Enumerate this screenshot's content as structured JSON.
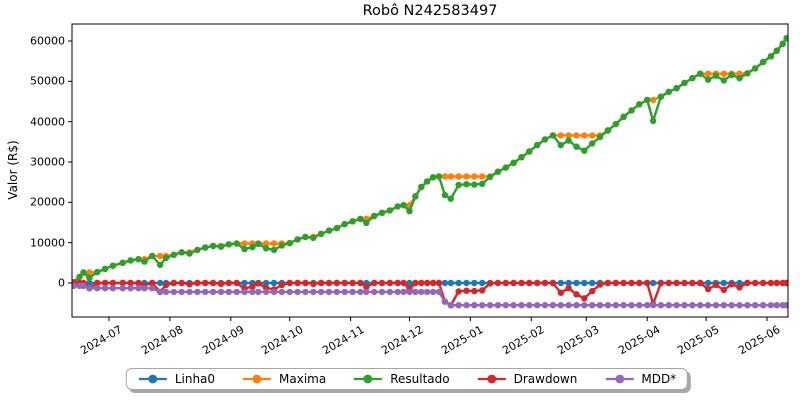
{
  "title": "Robô N242583497",
  "chart_data": {
    "type": "line",
    "title": "Robô N242583497",
    "xlabel": "",
    "ylabel": "Valor (R$)",
    "grid": false,
    "legend_position": "lower center outside",
    "ylim": [
      -8430,
      64200
    ],
    "xlim": [
      "2024-06-12",
      "2025-06-11"
    ],
    "ytick_values": [
      0,
      10000,
      20000,
      30000,
      40000,
      50000,
      60000
    ],
    "ytick_labels": [
      "0",
      "10000",
      "20000",
      "30000",
      "40000",
      "50000",
      "60000"
    ],
    "xtick_dates": [
      "2024-07-01",
      "2024-08-01",
      "2024-09-01",
      "2024-10-01",
      "2024-11-01",
      "2024-12-01",
      "2025-01-01",
      "2025-02-01",
      "2025-03-01",
      "2025-04-01",
      "2025-05-01",
      "2025-06-01"
    ],
    "xtick_labels": [
      "2024-07",
      "2024-08",
      "2024-09",
      "2024-10",
      "2024-11",
      "2024-12",
      "2025-01",
      "2025-02",
      "2025-03",
      "2025-04",
      "2025-05",
      "2025-06"
    ],
    "x_dates": [
      "2024-06-13",
      "2024-06-16",
      "2024-06-18",
      "2024-06-21",
      "2024-06-25",
      "2024-06-29",
      "2024-07-03",
      "2024-07-08",
      "2024-07-12",
      "2024-07-16",
      "2024-07-19",
      "2024-07-23",
      "2024-07-27",
      "2024-07-30",
      "2024-08-03",
      "2024-08-07",
      "2024-08-11",
      "2024-08-15",
      "2024-08-19",
      "2024-08-23",
      "2024-08-27",
      "2024-08-31",
      "2024-09-04",
      "2024-09-08",
      "2024-09-12",
      "2024-09-15",
      "2024-09-19",
      "2024-09-23",
      "2024-09-27",
      "2024-10-01",
      "2024-10-05",
      "2024-10-09",
      "2024-10-13",
      "2024-10-17",
      "2024-10-21",
      "2024-10-25",
      "2024-10-29",
      "2024-11-02",
      "2024-11-06",
      "2024-11-09",
      "2024-11-13",
      "2024-11-17",
      "2024-11-21",
      "2024-11-25",
      "2024-11-28",
      "2024-12-01",
      "2024-12-04",
      "2024-12-07",
      "2024-12-10",
      "2024-12-13",
      "2024-12-16",
      "2024-12-19",
      "2024-12-22",
      "2024-12-26",
      "2024-12-30",
      "2025-01-03",
      "2025-01-07",
      "2025-01-11",
      "2025-01-15",
      "2025-01-19",
      "2025-01-23",
      "2025-01-27",
      "2025-01-31",
      "2025-02-04",
      "2025-02-08",
      "2025-02-12",
      "2025-02-16",
      "2025-02-20",
      "2025-02-24",
      "2025-02-28",
      "2025-03-04",
      "2025-03-08",
      "2025-03-12",
      "2025-03-16",
      "2025-03-20",
      "2025-03-24",
      "2025-03-28",
      "2025-04-01",
      "2025-04-04",
      "2025-04-08",
      "2025-04-12",
      "2025-04-16",
      "2025-04-20",
      "2025-04-24",
      "2025-04-28",
      "2025-05-02",
      "2025-05-06",
      "2025-05-10",
      "2025-05-14",
      "2025-05-18",
      "2025-05-22",
      "2025-05-26",
      "2025-05-30",
      "2025-06-03",
      "2025-06-06",
      "2025-06-09",
      "2025-06-11"
    ],
    "series": [
      {
        "name": "Linha0",
        "color": "#1f77b4",
        "constant": 0
      },
      {
        "name": "Maxima",
        "color": "#ff7f0e",
        "values": [
          200,
          1500,
          2600,
          2600,
          2700,
          3500,
          4300,
          5000,
          5600,
          5900,
          5900,
          6700,
          6700,
          6700,
          7000,
          7600,
          7600,
          8200,
          8800,
          9200,
          9200,
          9600,
          9800,
          9800,
          9800,
          9800,
          9800,
          9800,
          9800,
          9900,
          10800,
          11400,
          11400,
          12200,
          13000,
          13600,
          14600,
          15300,
          15900,
          15900,
          16600,
          17400,
          18000,
          19000,
          19300,
          19300,
          21500,
          23800,
          25200,
          26200,
          26400,
          26400,
          26400,
          26400,
          26400,
          26400,
          26400,
          26400,
          27600,
          28600,
          29800,
          31200,
          32600,
          34200,
          35600,
          36600,
          36600,
          36600,
          36600,
          36600,
          36600,
          36600,
          37800,
          39400,
          41200,
          42800,
          44300,
          45400,
          45400,
          46200,
          47400,
          48300,
          49600,
          50800,
          51900,
          51900,
          51900,
          51900,
          51900,
          51900,
          52000,
          53200,
          54800,
          56200,
          57600,
          59300,
          60700
        ]
      },
      {
        "name": "Resultado",
        "color": "#2ca02c",
        "values": [
          200,
          1500,
          2600,
          1300,
          2700,
          3500,
          4300,
          5000,
          5600,
          5900,
          5300,
          6700,
          4500,
          6200,
          7000,
          7600,
          7300,
          8200,
          8800,
          9200,
          9000,
          9600,
          9800,
          8400,
          8900,
          9700,
          8600,
          8200,
          9300,
          9900,
          10800,
          11400,
          11200,
          12200,
          13000,
          13600,
          14600,
          15300,
          15900,
          14900,
          16600,
          17400,
          18000,
          19000,
          19300,
          17800,
          21500,
          23800,
          25200,
          26200,
          26400,
          21800,
          20900,
          24300,
          24500,
          24400,
          24600,
          26300,
          27600,
          28600,
          29800,
          31200,
          32600,
          34200,
          35600,
          36600,
          34200,
          35300,
          33800,
          32800,
          34600,
          36200,
          37800,
          39400,
          41200,
          42800,
          44300,
          45400,
          40200,
          46200,
          47400,
          48300,
          49600,
          50800,
          51900,
          50400,
          51400,
          50200,
          51600,
          50800,
          52000,
          53200,
          54800,
          56200,
          57600,
          59300,
          60700
        ]
      },
      {
        "name": "Drawdown",
        "color": "#d62728",
        "values": [
          0,
          0,
          0,
          -1300,
          0,
          0,
          0,
          0,
          0,
          0,
          -600,
          0,
          -2200,
          -500,
          0,
          0,
          -300,
          0,
          0,
          0,
          -200,
          0,
          0,
          -1400,
          -900,
          -100,
          -1200,
          -1600,
          -500,
          0,
          0,
          0,
          -200,
          0,
          0,
          0,
          0,
          0,
          0,
          -1000,
          0,
          0,
          0,
          0,
          0,
          -1500,
          0,
          0,
          0,
          0,
          0,
          -4600,
          -5500,
          -2100,
          -1900,
          -2000,
          -1800,
          -100,
          0,
          0,
          0,
          0,
          0,
          0,
          0,
          0,
          -2400,
          -1300,
          -2800,
          -3800,
          -2000,
          -400,
          0,
          0,
          0,
          0,
          0,
          0,
          -5200,
          0,
          0,
          0,
          0,
          0,
          0,
          -1500,
          -500,
          -1700,
          -300,
          -1100,
          0,
          0,
          0,
          0,
          0,
          0,
          0
        ]
      },
      {
        "name": "MDD*",
        "color": "#9467bd",
        "values": [
          -700,
          -700,
          -700,
          -1300,
          -1300,
          -1300,
          -1300,
          -1300,
          -1300,
          -1300,
          -1300,
          -1300,
          -2200,
          -2200,
          -2200,
          -2200,
          -2200,
          -2200,
          -2200,
          -2200,
          -2200,
          -2200,
          -2200,
          -2200,
          -2200,
          -2200,
          -2200,
          -2200,
          -2200,
          -2200,
          -2200,
          -2200,
          -2200,
          -2200,
          -2200,
          -2200,
          -2200,
          -2200,
          -2200,
          -2200,
          -2200,
          -2200,
          -2200,
          -2200,
          -2200,
          -2200,
          -2200,
          -2200,
          -2200,
          -2200,
          -2200,
          -4600,
          -5500,
          -5500,
          -5500,
          -5500,
          -5500,
          -5500,
          -5500,
          -5500,
          -5500,
          -5500,
          -5500,
          -5500,
          -5500,
          -5500,
          -5500,
          -5500,
          -5500,
          -5500,
          -5500,
          -5500,
          -5500,
          -5500,
          -5500,
          -5500,
          -5500,
          -5500,
          -5500,
          -5500,
          -5500,
          -5500,
          -5500,
          -5500,
          -5500,
          -5500,
          -5500,
          -5500,
          -5500,
          -5500,
          -5500,
          -5500,
          -5500,
          -5500,
          -5500,
          -5500,
          -5500
        ]
      }
    ]
  }
}
